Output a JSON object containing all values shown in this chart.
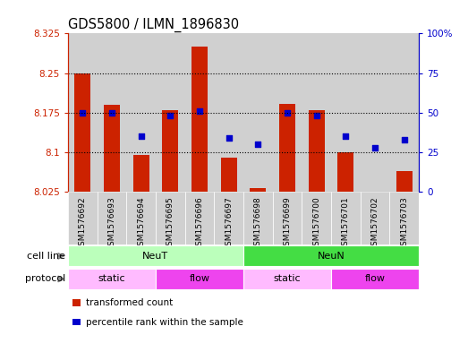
{
  "title": "GDS5800 / ILMN_1896830",
  "samples": [
    "GSM1576692",
    "GSM1576693",
    "GSM1576694",
    "GSM1576695",
    "GSM1576696",
    "GSM1576697",
    "GSM1576698",
    "GSM1576699",
    "GSM1576700",
    "GSM1576701",
    "GSM1576702",
    "GSM1576703"
  ],
  "transformed_count": [
    8.25,
    8.19,
    8.095,
    8.18,
    8.3,
    8.09,
    8.032,
    8.192,
    8.18,
    8.1,
    8.022,
    8.065
  ],
  "percentile_rank": [
    50,
    50,
    35,
    48,
    51,
    34,
    30,
    50,
    48,
    35,
    28,
    33
  ],
  "bar_bottom": 8.025,
  "ylim_left": [
    8.025,
    8.325
  ],
  "ylim_right": [
    0,
    100
  ],
  "yticks_left": [
    8.025,
    8.1,
    8.175,
    8.25,
    8.325
  ],
  "ytick_labels_left": [
    "8.025",
    "8.1",
    "8.175",
    "8.25",
    "8.325"
  ],
  "yticks_right": [
    0,
    25,
    50,
    75,
    100
  ],
  "ytick_labels_right": [
    "0",
    "25",
    "50",
    "75",
    "100%"
  ],
  "bar_color": "#cc2200",
  "dot_color": "#0000cc",
  "grid_yticks": [
    8.1,
    8.175,
    8.25
  ],
  "cell_line_groups": [
    {
      "label": "NeuT",
      "start": 0,
      "end": 5,
      "color": "#bbffbb"
    },
    {
      "label": "NeuN",
      "start": 6,
      "end": 11,
      "color": "#44dd44"
    }
  ],
  "protocol_groups": [
    {
      "label": "static",
      "start": 0,
      "end": 2,
      "color": "#ffbbff"
    },
    {
      "label": "flow",
      "start": 3,
      "end": 5,
      "color": "#ee44ee"
    },
    {
      "label": "static",
      "start": 6,
      "end": 8,
      "color": "#ffbbff"
    },
    {
      "label": "flow",
      "start": 9,
      "end": 11,
      "color": "#ee44ee"
    }
  ],
  "cell_line_label": "cell line",
  "protocol_label": "protocol",
  "legend_items": [
    {
      "label": "transformed count",
      "color": "#cc2200"
    },
    {
      "label": "percentile rank within the sample",
      "color": "#0000cc"
    }
  ],
  "bar_width": 0.55,
  "left_axis_color": "#cc2200",
  "right_axis_color": "#0000cc",
  "tick_label_color": "#cc2200",
  "bg_color": "#ffffff",
  "col_bg_color": "#d0d0d0",
  "ytick_fontsize": 7.5,
  "title_fontsize": 10.5,
  "sample_fontsize": 6.5,
  "annot_fontsize": 8,
  "legend_fontsize": 7.5
}
